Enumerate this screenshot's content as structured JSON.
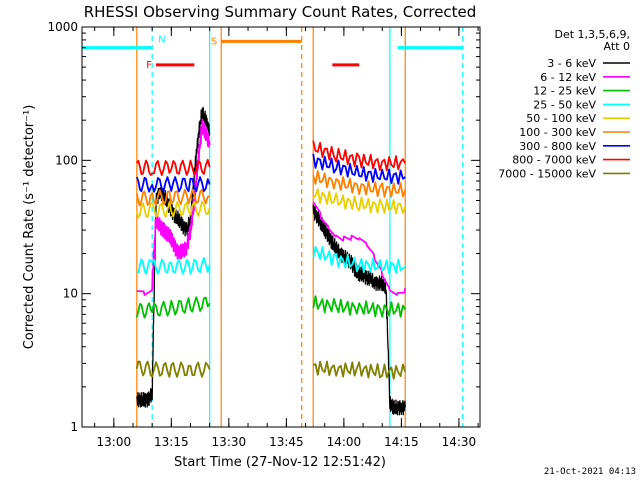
{
  "chart_data": {
    "type": "line",
    "title": "RHESSI Observing Summary Count Rates, Corrected",
    "xlabel": "Start Time (27-Nov-12 12:51:42)",
    "ylabel": "Corrected Count Rate (s⁻¹ detector⁻¹)",
    "y_scale": "log",
    "ylim": [
      1,
      1000
    ],
    "xlim": [
      "12:51:42",
      "14:35:30"
    ],
    "x_ticks": [
      "13:00",
      "13:15",
      "13:30",
      "13:45",
      "14:00",
      "14:15",
      "14:30"
    ],
    "y_ticks": [
      "1",
      "10",
      "100",
      "1000"
    ],
    "legend_header": [
      "Det 1,3,5,6,9,",
      "Att 0"
    ],
    "legend_position": "right",
    "series": [
      {
        "name": "3 - 6 keV",
        "color": "#000000",
        "segments": [
          {
            "x": [
              "13:06",
              "13:07",
              "13:08",
              "13:09",
              "13:10",
              "13:11",
              "13:12",
              "13:13",
              "13:14",
              "13:15",
              "13:16",
              "13:17",
              "13:18",
              "13:19",
              "13:20",
              "13:21",
              "13:22",
              "13:23",
              "13:24",
              "13:25"
            ],
            "y": [
              1.6,
              1.6,
              1.6,
              1.6,
              1.8,
              50,
              58,
              55,
              48,
              42,
              38,
              36,
              32,
              30,
              36,
              80,
              150,
              230,
              200,
              160
            ]
          },
          {
            "x": [
              "13:52",
              "13:53",
              "13:54",
              "13:55",
              "13:56",
              "13:57",
              "13:58",
              "13:59",
              "14:00",
              "14:01",
              "14:02",
              "14:03",
              "14:04",
              "14:05",
              "14:06",
              "14:07",
              "14:08",
              "14:09",
              "14:10",
              "14:11",
              "14:12",
              "14:13",
              "14:14",
              "14:15",
              "14:16"
            ],
            "y": [
              42,
              38,
              34,
              30,
              27,
              24,
              22,
              20,
              19,
              18,
              17,
              15,
              14,
              14,
              13,
              13,
              12,
              12,
              12,
              11,
              1.5,
              1.4,
              1.4,
              1.4,
              1.4
            ]
          }
        ]
      },
      {
        "name": "6 - 12 keV",
        "color": "#ff00ff",
        "segments": [
          {
            "x": [
              "13:06",
              "13:08",
              "13:10",
              "13:11",
              "13:12",
              "13:13",
              "13:14",
              "13:15",
              "13:16",
              "13:17",
              "13:18",
              "13:19",
              "13:20",
              "13:21",
              "13:22",
              "13:23",
              "13:24",
              "13:25"
            ],
            "y": [
              11,
              11,
              12,
              36,
              32,
              30,
              28,
              26,
              22,
              20,
              21,
              22,
              30,
              50,
              100,
              180,
              160,
              130
            ]
          },
          {
            "x": [
              "13:52",
              "13:54",
              "13:56",
              "13:58",
              "14:00",
              "14:02",
              "14:04",
              "14:06",
              "14:08",
              "14:10",
              "14:12",
              "14:14",
              "14:16"
            ],
            "y": [
              48,
              40,
              35,
              30,
              27,
              25,
              23,
              21,
              18,
              15,
              12,
              11,
              11
            ]
          }
        ]
      },
      {
        "name": "12 - 25 keV",
        "color": "#00c000",
        "segments": [
          {
            "x": [
              "13:06",
              "13:10",
              "13:15",
              "13:20",
              "13:25"
            ],
            "y": [
              7.5,
              7.5,
              7.8,
              8.2,
              8.5
            ]
          },
          {
            "x": [
              "13:52",
              "13:58",
              "14:04",
              "14:10",
              "14:16"
            ],
            "y": [
              8.5,
              8.0,
              7.8,
              7.6,
              7.6
            ]
          }
        ]
      },
      {
        "name": "25 - 50 keV",
        "color": "#00ffff",
        "segments": [
          {
            "x": [
              "13:06",
              "13:10",
              "13:15",
              "13:20",
              "13:25"
            ],
            "y": [
              16,
              16,
              16,
              16,
              16.5
            ]
          },
          {
            "x": [
              "13:52",
              "13:58",
              "14:04",
              "14:10",
              "14:16"
            ],
            "y": [
              21,
              18,
              16.5,
              16,
              16
            ]
          }
        ]
      },
      {
        "name": "50 - 100 keV",
        "color": "#e8d000",
        "segments": [
          {
            "x": [
              "13:06",
              "13:10",
              "13:15",
              "13:20",
              "13:25"
            ],
            "y": [
              42,
              42,
              43,
              43,
              44
            ]
          },
          {
            "x": [
              "13:52",
              "13:58",
              "14:04",
              "14:10",
              "14:16"
            ],
            "y": [
              56,
              50,
              47,
              45,
              45
            ]
          }
        ]
      },
      {
        "name": "100 - 300 keV",
        "color": "#ff8000",
        "segments": [
          {
            "x": [
              "13:06",
              "13:10",
              "13:15",
              "13:20",
              "13:25"
            ],
            "y": [
              52,
              52,
              53,
              53,
              54
            ]
          },
          {
            "x": [
              "13:52",
              "13:58",
              "14:04",
              "14:10",
              "14:16"
            ],
            "y": [
              75,
              68,
              63,
              60,
              60
            ]
          }
        ]
      },
      {
        "name": "300 - 800 keV",
        "color": "#0000ff",
        "segments": [
          {
            "x": [
              "13:06",
              "13:10",
              "13:15",
              "13:20",
              "13:25"
            ],
            "y": [
              66,
              66,
              66,
              66,
              66
            ]
          },
          {
            "x": [
              "13:52",
              "13:58",
              "14:04",
              "14:10",
              "14:16"
            ],
            "y": [
              100,
              90,
              80,
              76,
              75
            ]
          }
        ]
      },
      {
        "name": "800 - 7000 keV",
        "color": "#ff0000",
        "segments": [
          {
            "x": [
              "13:06",
              "13:10",
              "13:15",
              "13:20",
              "13:25"
            ],
            "y": [
              88,
              88,
              88,
              88,
              89
            ]
          },
          {
            "x": [
              "13:52",
              "13:58",
              "14:04",
              "14:10",
              "14:16"
            ],
            "y": [
              125,
              110,
              100,
              95,
              95
            ]
          }
        ]
      },
      {
        "name": "7000 - 15000 keV",
        "color": "#808000",
        "segments": [
          {
            "x": [
              "13:06",
              "13:10",
              "13:15",
              "13:20",
              "13:25"
            ],
            "y": [
              2.8,
              2.7,
              2.7,
              2.7,
              2.7
            ]
          },
          {
            "x": [
              "13:52",
              "13:58",
              "14:04",
              "14:10",
              "14:16"
            ],
            "y": [
              2.8,
              2.7,
              2.7,
              2.6,
              2.6
            ]
          }
        ]
      }
    ],
    "flags": [
      {
        "label": "N",
        "color": "#00ffff",
        "y_level": 700,
        "x_start": "12:51:42",
        "x_end": "13:10"
      },
      {
        "label": "N",
        "color": "#00ffff",
        "y_level": 700,
        "x_start": "14:14",
        "x_end": "14:31"
      },
      {
        "label": "F",
        "color": "#ff0000",
        "y_level": 520,
        "x_start": "13:11",
        "x_end": "13:21"
      },
      {
        "label": "F",
        "color": "#ff0000",
        "y_level": 520,
        "x_start": "13:57",
        "x_end": "14:04"
      },
      {
        "label": "S",
        "color": "#ff8000",
        "y_level": 780,
        "x_start": "13:28",
        "x_end": "13:49"
      }
    ],
    "vlines": [
      {
        "time": "13:10",
        "color": "#00ffff",
        "style": "dashed"
      },
      {
        "time": "13:06",
        "color": "#ff8000",
        "style": "solid"
      },
      {
        "time": "13:25",
        "color": "#00ffff",
        "style": "solid"
      },
      {
        "time": "13:28",
        "color": "#ff8000",
        "style": "solid"
      },
      {
        "time": "13:49",
        "color": "#ff8000",
        "style": "dashed"
      },
      {
        "time": "13:52",
        "color": "#ff8000",
        "style": "solid"
      },
      {
        "time": "14:12",
        "color": "#00ffff",
        "style": "solid"
      },
      {
        "time": "14:16",
        "color": "#ff8000",
        "style": "solid"
      },
      {
        "time": "14:31",
        "color": "#00ffff",
        "style": "dashed"
      }
    ]
  },
  "footer": {
    "timestamp": "21-Oct-2021 04:13"
  }
}
